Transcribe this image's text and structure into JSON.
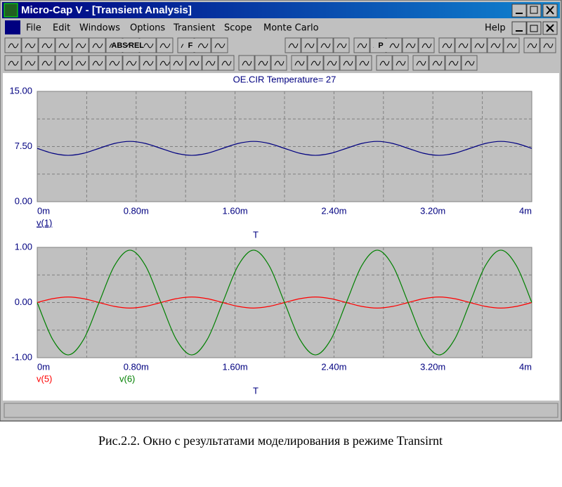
{
  "window": {
    "title": "Micro-Cap V - [Transient Analysis]"
  },
  "menu": {
    "items": [
      "File",
      "Edit",
      "Windows",
      "Options",
      "Transient",
      "Scope",
      "Monte Carlo"
    ],
    "help": "Help"
  },
  "toolbar": {
    "labels": [
      "ABS",
      "REL",
      "F",
      "P"
    ]
  },
  "chart_data": [
    {
      "type": "line",
      "title": "OE.CIR Temperature= 27",
      "xlabel": "T",
      "x": [
        0,
        0.125,
        0.25,
        0.375,
        0.5,
        0.625,
        0.75,
        0.875,
        1,
        1.125,
        1.25,
        1.375,
        1.5,
        1.625,
        1.75,
        1.875,
        2,
        2.125,
        2.25,
        2.375,
        2.5,
        2.625,
        2.75,
        2.875,
        3,
        3.125,
        3.25,
        3.375,
        3.5,
        3.625,
        3.75,
        3.875,
        4
      ],
      "xlim": [
        0,
        4
      ],
      "xticks": [
        {
          "value": 0,
          "label": "0m"
        },
        {
          "value": 0.8,
          "label": "0.80m"
        },
        {
          "value": 1.6,
          "label": "1.60m"
        },
        {
          "value": 2.4,
          "label": "2.40m"
        },
        {
          "value": 3.2,
          "label": "3.20m"
        },
        {
          "value": 4,
          "label": "4m"
        }
      ],
      "ylim": [
        0,
        15
      ],
      "yticks": [
        {
          "value": 15,
          "label": "15.00"
        },
        {
          "value": 7.5,
          "label": "7.50"
        },
        {
          "value": 0,
          "label": "0.00"
        }
      ],
      "grid": true,
      "series": [
        {
          "name": "v(1)",
          "color": "#000080",
          "values": [
            7.25,
            6.58,
            6.3,
            6.58,
            7.25,
            7.92,
            8.2,
            7.92,
            7.25,
            6.58,
            6.3,
            6.58,
            7.25,
            7.92,
            8.2,
            7.92,
            7.25,
            6.58,
            6.3,
            6.58,
            7.25,
            7.92,
            8.2,
            7.92,
            7.25,
            6.58,
            6.3,
            6.58,
            7.25,
            7.92,
            8.2,
            7.92,
            7.25
          ]
        }
      ]
    },
    {
      "type": "line",
      "xlabel": "T",
      "x": [
        0,
        0.125,
        0.25,
        0.375,
        0.5,
        0.625,
        0.75,
        0.875,
        1,
        1.125,
        1.25,
        1.375,
        1.5,
        1.625,
        1.75,
        1.875,
        2,
        2.125,
        2.25,
        2.375,
        2.5,
        2.625,
        2.75,
        2.875,
        3,
        3.125,
        3.25,
        3.375,
        3.5,
        3.625,
        3.75,
        3.875,
        4
      ],
      "xlim": [
        0,
        4
      ],
      "xticks": [
        {
          "value": 0,
          "label": "0m"
        },
        {
          "value": 0.8,
          "label": "0.80m"
        },
        {
          "value": 1.6,
          "label": "1.60m"
        },
        {
          "value": 2.4,
          "label": "2.40m"
        },
        {
          "value": 3.2,
          "label": "3.20m"
        },
        {
          "value": 4,
          "label": "4m"
        }
      ],
      "ylim": [
        -1,
        1
      ],
      "yticks": [
        {
          "value": 1,
          "label": "1.00"
        },
        {
          "value": 0,
          "label": "0.00"
        },
        {
          "value": -1,
          "label": "-1.00"
        }
      ],
      "grid": true,
      "series": [
        {
          "name": "v(5)",
          "color": "#ff0000",
          "values": [
            0,
            0.07,
            0.1,
            0.07,
            0,
            -0.07,
            -0.1,
            -0.07,
            0,
            0.07,
            0.1,
            0.07,
            0,
            -0.07,
            -0.1,
            -0.07,
            0,
            0.07,
            0.1,
            0.07,
            0,
            -0.07,
            -0.1,
            -0.07,
            0,
            0.07,
            0.1,
            0.07,
            0,
            -0.07,
            -0.1,
            -0.07,
            0
          ]
        },
        {
          "name": "v(6)",
          "color": "#008000",
          "values": [
            0,
            -0.67,
            -0.95,
            -0.67,
            0,
            0.67,
            0.95,
            0.67,
            0,
            -0.67,
            -0.95,
            -0.67,
            0,
            0.67,
            0.95,
            0.67,
            0,
            -0.67,
            -0.95,
            -0.67,
            0,
            0.67,
            0.95,
            0.67,
            0,
            -0.67,
            -0.95,
            -0.67,
            0,
            0.67,
            0.95,
            0.67,
            0
          ]
        }
      ]
    }
  ],
  "caption": "Рис.2.2. Окно с результатами моделирования в режиме Transirnt"
}
